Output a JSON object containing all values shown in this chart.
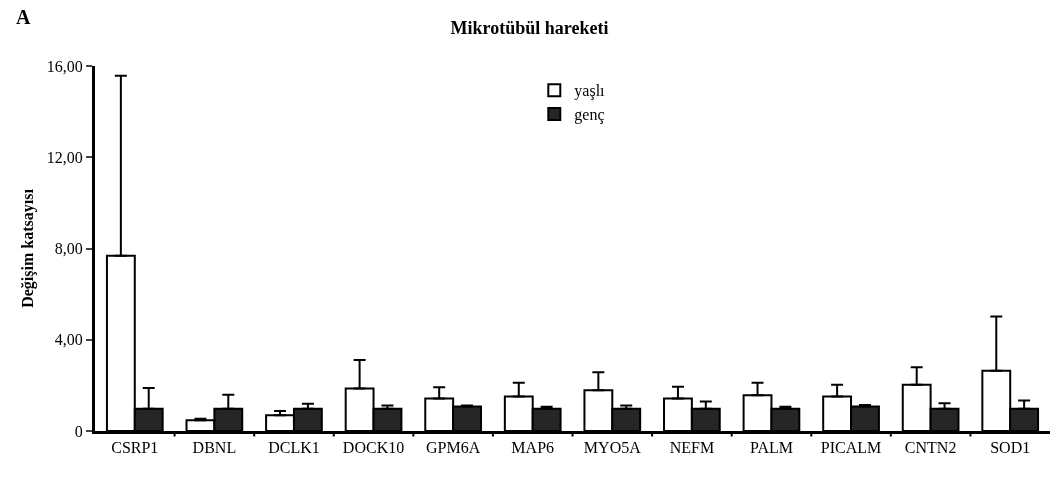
{
  "chart_data": {
    "type": "bar",
    "title": "Mikrotübül hareketi",
    "ylabel": "Değişim katsayısı",
    "annotations": [
      "A"
    ],
    "categories": [
      "CSRP1",
      "DBNL",
      "DCLK1",
      "DOCK10",
      "GPM6A",
      "MAP6",
      "MYO5A",
      "NEFM",
      "PALM",
      "PICALM",
      "CNTN2",
      "SOD1"
    ],
    "series": [
      {
        "name": "yaşlı",
        "color": "#ffffff",
        "values": [
          7.68,
          0.47,
          0.69,
          1.86,
          1.42,
          1.51,
          1.79,
          1.42,
          1.57,
          1.51,
          2.03,
          2.64
        ],
        "errors": [
          [
            7.68,
            15.57
          ],
          [
            0.47,
            0.54
          ],
          [
            0.69,
            0.88
          ],
          [
            1.86,
            3.11
          ],
          [
            1.42,
            1.92
          ],
          [
            1.51,
            2.11
          ],
          [
            1.79,
            2.57
          ],
          [
            1.42,
            1.94
          ],
          [
            1.57,
            2.11
          ],
          [
            1.51,
            2.03
          ],
          [
            2.03,
            2.8
          ],
          [
            2.64,
            5.02
          ]
        ]
      },
      {
        "name": "genç",
        "color": "#262626",
        "values": [
          0.98,
          0.98,
          0.98,
          0.98,
          1.07,
          0.98,
          0.98,
          0.98,
          0.98,
          1.07,
          0.98,
          0.98
        ],
        "errors": [
          [
            0.98,
            1.88
          ],
          [
            0.98,
            1.59
          ],
          [
            0.98,
            1.2
          ],
          [
            0.98,
            1.12
          ],
          [
            1.07,
            1.12
          ],
          [
            0.98,
            1.06
          ],
          [
            0.98,
            1.12
          ],
          [
            0.98,
            1.29
          ],
          [
            0.98,
            1.06
          ],
          [
            1.07,
            1.14
          ],
          [
            0.98,
            1.22
          ],
          [
            0.98,
            1.34
          ]
        ]
      }
    ],
    "ylim": [
      0,
      16
    ],
    "yticks": [
      0,
      {
        "value": 4,
        "label": "4,00"
      },
      {
        "value": 8,
        "label": "8,00"
      },
      {
        "value": 12,
        "label": "12,00"
      },
      {
        "value": 16,
        "label": "16,00"
      }
    ],
    "grid": false,
    "legend": "top"
  }
}
